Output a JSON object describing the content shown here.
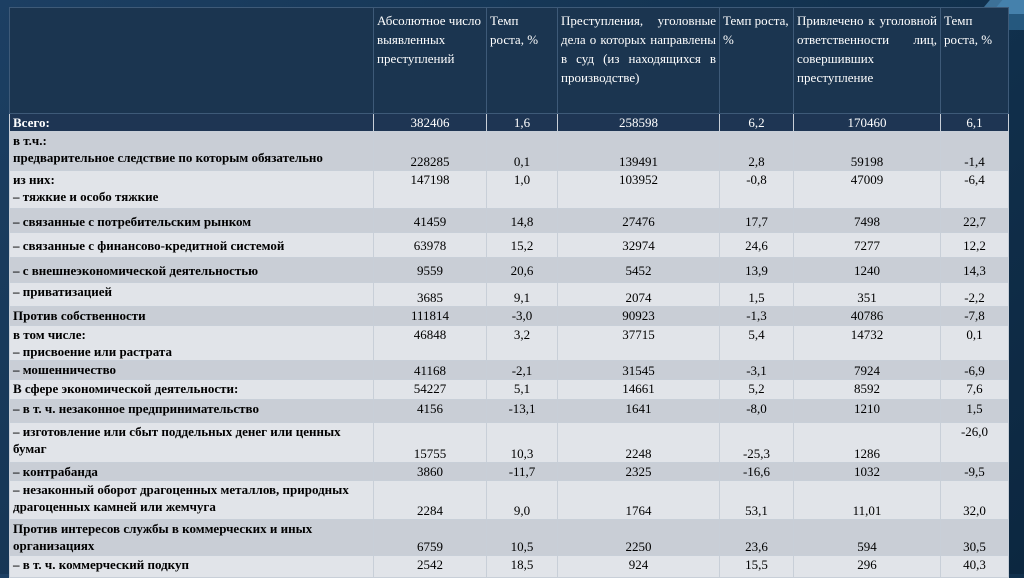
{
  "headers": [
    "",
    "Абсолютное число выявленных преступлений",
    "Темп роста, %",
    "Преступления, уголовные дела о которых направлены в суд (из находящихся в производстве)",
    "Темп роста, %",
    "Привлечено к уголовной ответственности лиц, совершивших преступление",
    "Темп роста, %"
  ],
  "rows": [
    {
      "label": "Всего:",
      "v1": "382406",
      "v2": "1,6",
      "v3": "258598",
      "v4": "6,2",
      "v5": "170460",
      "v6": "6,1"
    },
    {
      "label": "в т.ч.:\nпредварительное следствие по которым обязательно",
      "v1": "228285",
      "v2": "0,1",
      "v3": "139491",
      "v4": "2,8",
      "v5": "59198",
      "v6": "-1,4"
    },
    {
      "label": "из них:\n– тяжкие и особо тяжкие",
      "v1": "147198",
      "v2": "1,0",
      "v3": "103952",
      "v4": "-0,8",
      "v5": "47009",
      "v6": "-6,4"
    },
    {
      "label": "– связанные с потребительским рынком",
      "v1": "41459",
      "v2": "14,8",
      "v3": "27476",
      "v4": "17,7",
      "v5": "7498",
      "v6": "22,7"
    },
    {
      "label": "– связанные с финансово-кредитной системой",
      "v1": "63978",
      "v2": "15,2",
      "v3": "32974",
      "v4": "24,6",
      "v5": "7277",
      "v6": "12,2"
    },
    {
      "label": "– с внешнеэкономической деятельностью",
      "v1": "9559",
      "v2": "20,6",
      "v3": "5452",
      "v4": "13,9",
      "v5": "1240",
      "v6": "14,3"
    },
    {
      "label": "– приватизацией",
      "v1": "3685",
      "v2": "9,1",
      "v3": "2074",
      "v4": "1,5",
      "v5": "351",
      "v6": "-2,2"
    },
    {
      "label": "Против собственности",
      "v1": "111814",
      "v2": "-3,0",
      "v3": "90923",
      "v4": "-1,3",
      "v5": "40786",
      "v6": "-7,8"
    },
    {
      "label": "в том числе:\n– присвоение или растрата",
      "v1": "46848",
      "v2": "3,2",
      "v3": "37715",
      "v4": "5,4",
      "v5": "14732",
      "v6": "0,1"
    },
    {
      "label": "– мошенничество",
      "v1": "41168",
      "v2": "-2,1",
      "v3": "31545",
      "v4": "-3,1",
      "v5": "7924",
      "v6": "-6,9"
    },
    {
      "label": "В сфере экономической деятельности:",
      "v1": "54227",
      "v2": "5,1",
      "v3": "14661",
      "v4": "5,2",
      "v5": "8592",
      "v6": "7,6"
    },
    {
      "label": "– в т. ч. незаконное предпринимательство",
      "v1": "4156",
      "v2": "-13,1",
      "v3": "1641",
      "v4": "-8,0",
      "v5": "1210",
      "v6": "1,5"
    },
    {
      "label": "– изготовление или сбыт поддельных денег или ценных бумаг",
      "v1": "15755",
      "v2": "10,3",
      "v3": "2248",
      "v4": "-25,3",
      "v5": "1286",
      "v6": "-26,0"
    },
    {
      "label": "– контрабанда",
      "v1": "3860",
      "v2": "-11,7",
      "v3": "2325",
      "v4": "-16,6",
      "v5": "1032",
      "v6": "-9,5"
    },
    {
      "label": "– незаконный оборот драгоценных металлов, природных драгоценных камней или жемчуга",
      "v1": "2284",
      "v2": "9,0",
      "v3": "1764",
      "v4": "53,1",
      "v5": "11,01",
      "v6": "32,0"
    },
    {
      "label": "Против интересов службы в коммерческих и иных организациях",
      "v1": "6759",
      "v2": "10,5",
      "v3": "2250",
      "v4": "23,6",
      "v5": "594",
      "v6": "30,5"
    },
    {
      "label": "– в т. ч. коммерческий подкуп",
      "v1": "2542",
      "v2": "18,5",
      "v3": "924",
      "v4": "15,5",
      "v5": "296",
      "v6": "40,3"
    }
  ]
}
